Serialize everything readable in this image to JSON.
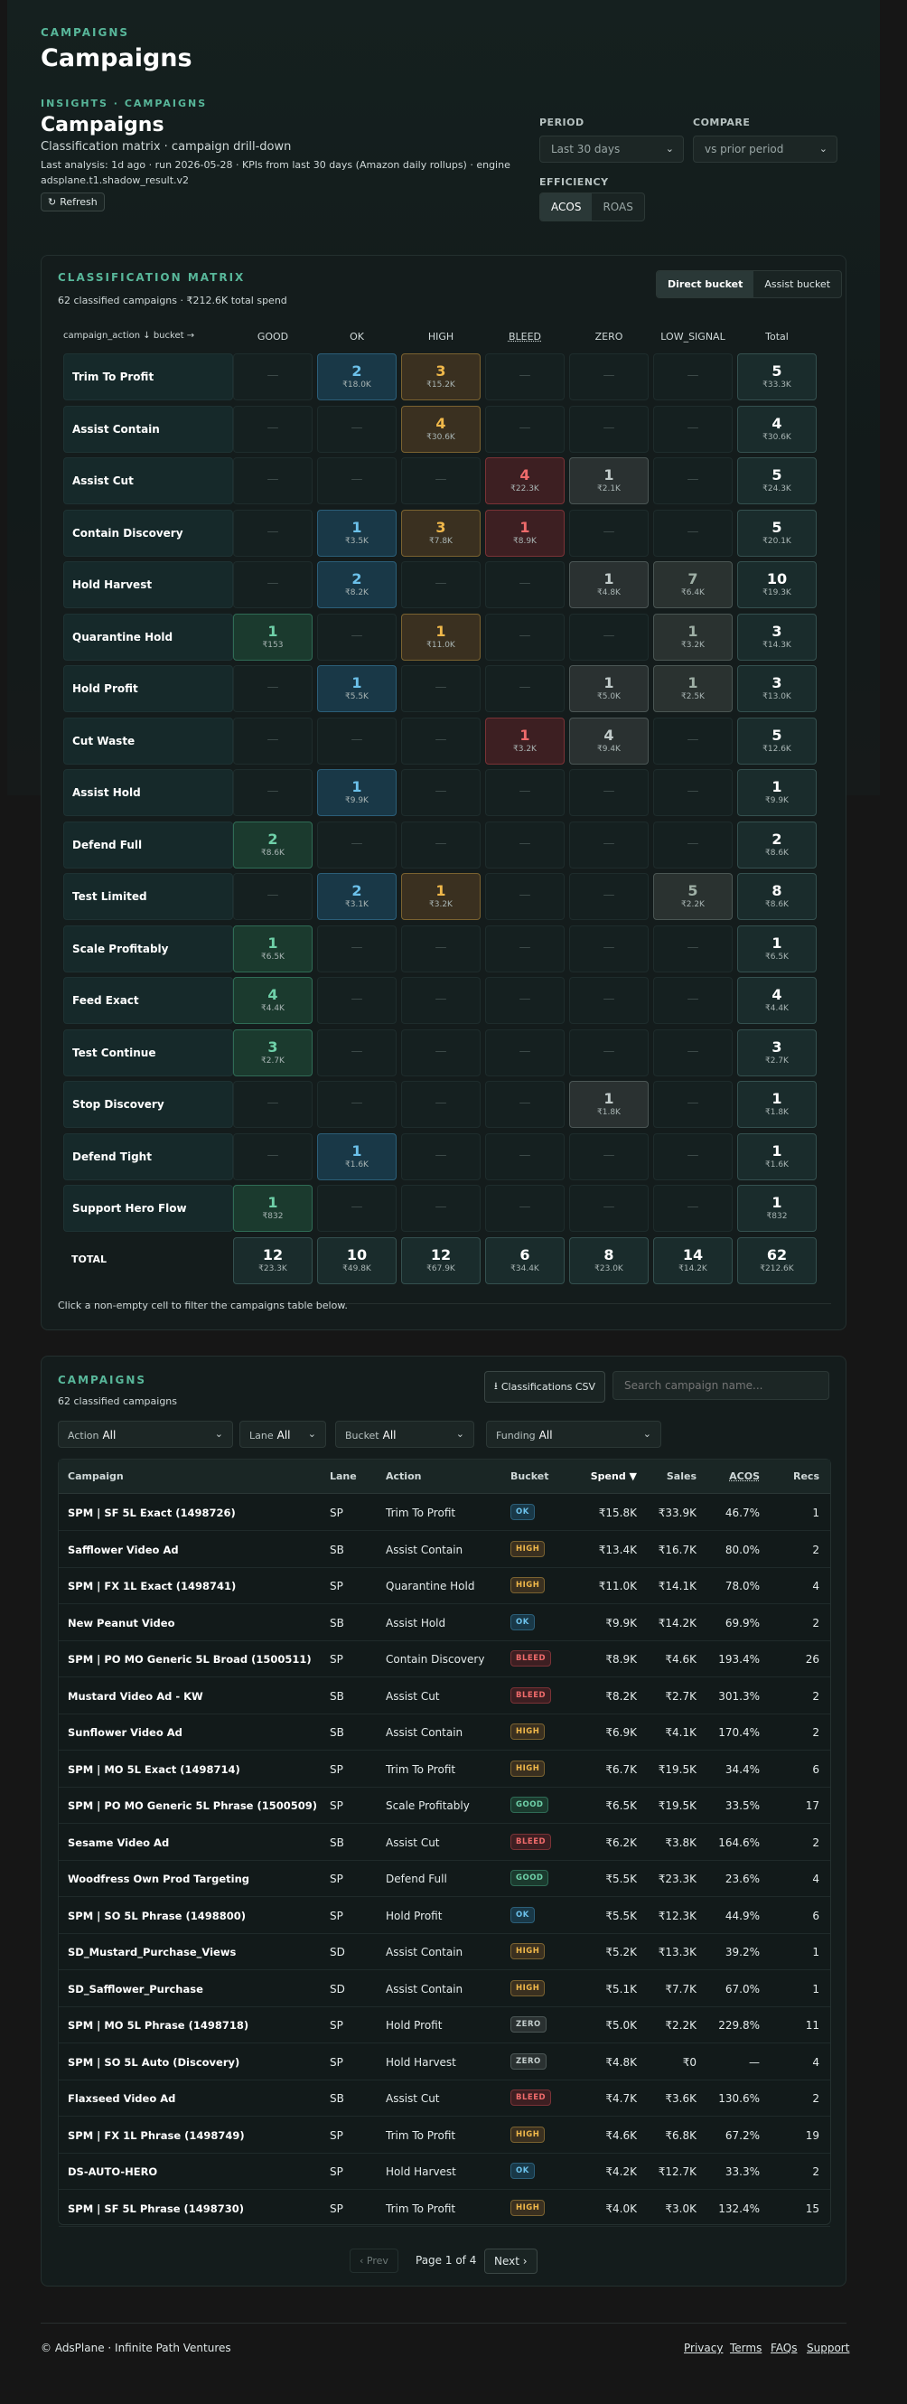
{
  "header": {
    "eyebrow": "CAMPAIGNS",
    "title": "Campaigns",
    "breadcrumb": "INSIGHTS · CAMPAIGNS",
    "section_title": "Campaigns",
    "subtitle": "Classification matrix · campaign drill-down",
    "analysis_line1": "Last analysis: 1d ago · run 2026-05-28 · KPIs from last 30 days (Amazon daily rollups) · engine",
    "analysis_line2": "adsplane.t1.shadow_result.v2",
    "refresh_label": "Refresh"
  },
  "controls": {
    "period_label": "PERIOD",
    "period_value": "Last 30 days",
    "compare_label": "COMPARE",
    "compare_value": "vs prior period",
    "efficiency_label": "EFFICIENCY",
    "efficiency_options": [
      "ACOS",
      "ROAS"
    ]
  },
  "matrix": {
    "title": "CLASSIFICATION MATRIX",
    "summary": "62 classified campaigns · ₹212.6K total spend",
    "toggle": [
      "Direct bucket",
      "Assist bucket"
    ],
    "corner_label": "campaign_action ↓   bucket →",
    "columns": [
      "GOOD",
      "OK",
      "HIGH",
      "BLEED",
      "ZERO",
      "LOW_SIGNAL",
      "Total"
    ],
    "rows": [
      {
        "label": "Trim To Profit",
        "cells": [
          null,
          {
            "n": "2",
            "v": "₹18.0K"
          },
          {
            "n": "3",
            "v": "₹15.2K"
          },
          null,
          null,
          null,
          {
            "n": "5",
            "v": "₹33.3K"
          }
        ]
      },
      {
        "label": "Assist Contain",
        "cells": [
          null,
          null,
          {
            "n": "4",
            "v": "₹30.6K"
          },
          null,
          null,
          null,
          {
            "n": "4",
            "v": "₹30.6K"
          }
        ]
      },
      {
        "label": "Assist Cut",
        "cells": [
          null,
          null,
          null,
          {
            "n": "4",
            "v": "₹22.3K"
          },
          {
            "n": "1",
            "v": "₹2.1K"
          },
          null,
          {
            "n": "5",
            "v": "₹24.3K"
          }
        ]
      },
      {
        "label": "Contain Discovery",
        "cells": [
          null,
          {
            "n": "1",
            "v": "₹3.5K"
          },
          {
            "n": "3",
            "v": "₹7.8K"
          },
          {
            "n": "1",
            "v": "₹8.9K"
          },
          null,
          null,
          {
            "n": "5",
            "v": "₹20.1K"
          }
        ]
      },
      {
        "label": "Hold Harvest",
        "cells": [
          null,
          {
            "n": "2",
            "v": "₹8.2K"
          },
          null,
          null,
          {
            "n": "1",
            "v": "₹4.8K"
          },
          {
            "n": "7",
            "v": "₹6.4K"
          },
          {
            "n": "10",
            "v": "₹19.3K"
          }
        ]
      },
      {
        "label": "Quarantine Hold",
        "cells": [
          {
            "n": "1",
            "v": "₹153"
          },
          null,
          {
            "n": "1",
            "v": "₹11.0K"
          },
          null,
          null,
          {
            "n": "1",
            "v": "₹3.2K"
          },
          {
            "n": "3",
            "v": "₹14.3K"
          }
        ]
      },
      {
        "label": "Hold Profit",
        "cells": [
          null,
          {
            "n": "1",
            "v": "₹5.5K"
          },
          null,
          null,
          {
            "n": "1",
            "v": "₹5.0K"
          },
          {
            "n": "1",
            "v": "₹2.5K"
          },
          {
            "n": "3",
            "v": "₹13.0K"
          }
        ]
      },
      {
        "label": "Cut Waste",
        "cells": [
          null,
          null,
          null,
          {
            "n": "1",
            "v": "₹3.2K"
          },
          {
            "n": "4",
            "v": "₹9.4K"
          },
          null,
          {
            "n": "5",
            "v": "₹12.6K"
          }
        ]
      },
      {
        "label": "Assist Hold",
        "cells": [
          null,
          {
            "n": "1",
            "v": "₹9.9K"
          },
          null,
          null,
          null,
          null,
          {
            "n": "1",
            "v": "₹9.9K"
          }
        ]
      },
      {
        "label": "Defend Full",
        "cells": [
          {
            "n": "2",
            "v": "₹8.6K"
          },
          null,
          null,
          null,
          null,
          null,
          {
            "n": "2",
            "v": "₹8.6K"
          }
        ]
      },
      {
        "label": "Test Limited",
        "cells": [
          null,
          {
            "n": "2",
            "v": "₹3.1K"
          },
          {
            "n": "1",
            "v": "₹3.2K"
          },
          null,
          null,
          {
            "n": "5",
            "v": "₹2.2K"
          },
          {
            "n": "8",
            "v": "₹8.6K"
          }
        ]
      },
      {
        "label": "Scale Profitably",
        "cells": [
          {
            "n": "1",
            "v": "₹6.5K"
          },
          null,
          null,
          null,
          null,
          null,
          {
            "n": "1",
            "v": "₹6.5K"
          }
        ]
      },
      {
        "label": "Feed Exact",
        "cells": [
          {
            "n": "4",
            "v": "₹4.4K"
          },
          null,
          null,
          null,
          null,
          null,
          {
            "n": "4",
            "v": "₹4.4K"
          }
        ]
      },
      {
        "label": "Test Continue",
        "cells": [
          {
            "n": "3",
            "v": "₹2.7K"
          },
          null,
          null,
          null,
          null,
          null,
          {
            "n": "3",
            "v": "₹2.7K"
          }
        ]
      },
      {
        "label": "Stop Discovery",
        "cells": [
          null,
          null,
          null,
          null,
          {
            "n": "1",
            "v": "₹1.8K"
          },
          null,
          {
            "n": "1",
            "v": "₹1.8K"
          }
        ]
      },
      {
        "label": "Defend Tight",
        "cells": [
          null,
          {
            "n": "1",
            "v": "₹1.6K"
          },
          null,
          null,
          null,
          null,
          {
            "n": "1",
            "v": "₹1.6K"
          }
        ]
      },
      {
        "label": "Support Hero Flow",
        "cells": [
          {
            "n": "1",
            "v": "₹832"
          },
          null,
          null,
          null,
          null,
          null,
          {
            "n": "1",
            "v": "₹832"
          }
        ]
      }
    ],
    "total_label": "TOTAL",
    "totals": [
      {
        "n": "12",
        "v": "₹23.3K"
      },
      {
        "n": "10",
        "v": "₹49.8K"
      },
      {
        "n": "12",
        "v": "₹67.9K"
      },
      {
        "n": "6",
        "v": "₹34.4K"
      },
      {
        "n": "8",
        "v": "₹23.0K"
      },
      {
        "n": "14",
        "v": "₹14.2K"
      },
      {
        "n": "62",
        "v": "₹212.6K"
      }
    ],
    "hint": "Click a non-empty cell to filter the campaigns table below.",
    "dash": "—"
  },
  "campaigns": {
    "title": "CAMPAIGNS",
    "count": "62 classified campaigns",
    "csv_label": "Classifications CSV",
    "search_placeholder": "Search campaign name...",
    "filters": [
      {
        "label": "Action",
        "value": "All"
      },
      {
        "label": "Lane",
        "value": "All"
      },
      {
        "label": "Bucket",
        "value": "All"
      },
      {
        "label": "Funding",
        "value": "All"
      }
    ],
    "headers": [
      "Campaign",
      "Lane",
      "Action",
      "Bucket",
      "Spend ▼",
      "Sales",
      "ACOS",
      "Recs"
    ],
    "rows": [
      {
        "name": "SPM | SF 5L Exact (1498726)",
        "lane": "SP",
        "action": "Trim To Profit",
        "bucket": "OK",
        "spend": "₹15.8K",
        "sales": "₹33.9K",
        "acos": "46.7%",
        "recs": "1"
      },
      {
        "name": "Safflower Video Ad",
        "lane": "SB",
        "action": "Assist Contain",
        "bucket": "HIGH",
        "spend": "₹13.4K",
        "sales": "₹16.7K",
        "acos": "80.0%",
        "recs": "2"
      },
      {
        "name": "SPM | FX 1L Exact (1498741)",
        "lane": "SP",
        "action": "Quarantine Hold",
        "bucket": "HIGH",
        "spend": "₹11.0K",
        "sales": "₹14.1K",
        "acos": "78.0%",
        "recs": "4"
      },
      {
        "name": "New Peanut Video",
        "lane": "SB",
        "action": "Assist Hold",
        "bucket": "OK",
        "spend": "₹9.9K",
        "sales": "₹14.2K",
        "acos": "69.9%",
        "recs": "2"
      },
      {
        "name": "SPM | PO MO Generic 5L Broad (1500511)",
        "lane": "SP",
        "action": "Contain Discovery",
        "bucket": "BLEED",
        "spend": "₹8.9K",
        "sales": "₹4.6K",
        "acos": "193.4%",
        "recs": "26"
      },
      {
        "name": "Mustard Video Ad - KW",
        "lane": "SB",
        "action": "Assist Cut",
        "bucket": "BLEED",
        "spend": "₹8.2K",
        "sales": "₹2.7K",
        "acos": "301.3%",
        "recs": "2"
      },
      {
        "name": "Sunflower Video Ad",
        "lane": "SB",
        "action": "Assist Contain",
        "bucket": "HIGH",
        "spend": "₹6.9K",
        "sales": "₹4.1K",
        "acos": "170.4%",
        "recs": "2"
      },
      {
        "name": "SPM | MO 5L Exact (1498714)",
        "lane": "SP",
        "action": "Trim To Profit",
        "bucket": "HIGH",
        "spend": "₹6.7K",
        "sales": "₹19.5K",
        "acos": "34.4%",
        "recs": "6"
      },
      {
        "name": "SPM | PO MO Generic 5L Phrase (1500509)",
        "lane": "SP",
        "action": "Scale Profitably",
        "bucket": "GOOD",
        "spend": "₹6.5K",
        "sales": "₹19.5K",
        "acos": "33.5%",
        "recs": "17"
      },
      {
        "name": "Sesame Video Ad",
        "lane": "SB",
        "action": "Assist Cut",
        "bucket": "BLEED",
        "spend": "₹6.2K",
        "sales": "₹3.8K",
        "acos": "164.6%",
        "recs": "2"
      },
      {
        "name": "Woodfress Own Prod Targeting",
        "lane": "SP",
        "action": "Defend Full",
        "bucket": "GOOD",
        "spend": "₹5.5K",
        "sales": "₹23.3K",
        "acos": "23.6%",
        "recs": "4"
      },
      {
        "name": "SPM | SO 5L Phrase (1498800)",
        "lane": "SP",
        "action": "Hold Profit",
        "bucket": "OK",
        "spend": "₹5.5K",
        "sales": "₹12.3K",
        "acos": "44.9%",
        "recs": "6"
      },
      {
        "name": "SD_Mustard_Purchase_Views",
        "lane": "SD",
        "action": "Assist Contain",
        "bucket": "HIGH",
        "spend": "₹5.2K",
        "sales": "₹13.3K",
        "acos": "39.2%",
        "recs": "1"
      },
      {
        "name": "SD_Safflower_Purchase",
        "lane": "SD",
        "action": "Assist Contain",
        "bucket": "HIGH",
        "spend": "₹5.1K",
        "sales": "₹7.7K",
        "acos": "67.0%",
        "recs": "1"
      },
      {
        "name": "SPM | MO 5L Phrase (1498718)",
        "lane": "SP",
        "action": "Hold Profit",
        "bucket": "ZERO",
        "spend": "₹5.0K",
        "sales": "₹2.2K",
        "acos": "229.8%",
        "recs": "11"
      },
      {
        "name": "SPM | SO 5L Auto (Discovery)",
        "lane": "SP",
        "action": "Hold Harvest",
        "bucket": "ZERO",
        "spend": "₹4.8K",
        "sales": "₹0",
        "acos": "—",
        "recs": "4"
      },
      {
        "name": "Flaxseed Video Ad",
        "lane": "SB",
        "action": "Assist Cut",
        "bucket": "BLEED",
        "spend": "₹4.7K",
        "sales": "₹3.6K",
        "acos": "130.6%",
        "recs": "2"
      },
      {
        "name": "SPM | FX 1L Phrase (1498749)",
        "lane": "SP",
        "action": "Trim To Profit",
        "bucket": "HIGH",
        "spend": "₹4.6K",
        "sales": "₹6.8K",
        "acos": "67.2%",
        "recs": "19"
      },
      {
        "name": "DS-AUTO-HERO",
        "lane": "SP",
        "action": "Hold Harvest",
        "bucket": "OK",
        "spend": "₹4.2K",
        "sales": "₹12.7K",
        "acos": "33.3%",
        "recs": "2"
      },
      {
        "name": "SPM | SF 5L Phrase (1498730)",
        "lane": "SP",
        "action": "Trim To Profit",
        "bucket": "HIGH",
        "spend": "₹4.0K",
        "sales": "₹3.0K",
        "acos": "132.4%",
        "recs": "15"
      }
    ],
    "pagination": {
      "prev": "‹ Prev",
      "page": "Page 1 of 4",
      "next": "Next ›"
    }
  },
  "footer": {
    "copyright": "© AdsPlane · Infinite Path Ventures",
    "links": [
      "Privacy",
      "Terms",
      "FAQs",
      "Support"
    ]
  }
}
